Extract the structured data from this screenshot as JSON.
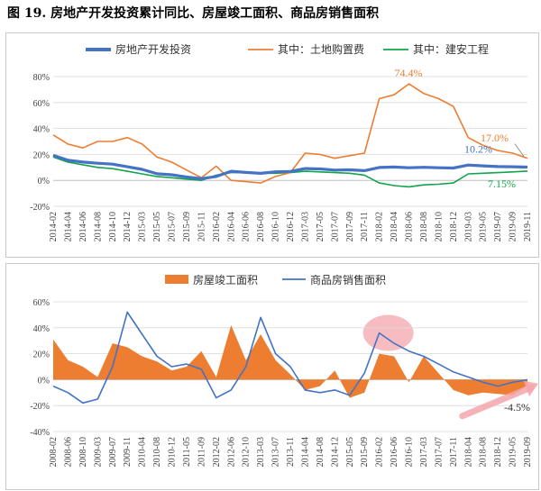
{
  "title": "图 19. 房地产开发投资累计同比、房屋竣工面积、商品房销售面积",
  "chart_data": [
    {
      "type": "line",
      "ylim": [
        -20,
        80
      ],
      "yticks": [
        "80%",
        "60%",
        "40%",
        "20%",
        "0%",
        "-20%"
      ],
      "ytick_values": [
        80,
        60,
        40,
        20,
        0,
        -20
      ],
      "x_labels": [
        "2014-02",
        "2014-04",
        "2014-06",
        "2014-08",
        "2014-10",
        "2014-12",
        "2015-03",
        "2015-05",
        "2015-07",
        "2015-09",
        "2015-11",
        "2016-02",
        "2016-04",
        "2016-06",
        "2016-08",
        "2016-10",
        "2016-12",
        "2017-03",
        "2017-05",
        "2017-07",
        "2017-09",
        "2017-11",
        "2018-02",
        "2018-04",
        "2018-06",
        "2018-08",
        "2018-10",
        "2018-12",
        "2019-03",
        "2019-05",
        "2019-07",
        "2019-09",
        "2019-11"
      ],
      "series": [
        {
          "name": "房地产开发投资",
          "color": "#4472C4",
          "values": [
            19.3,
            15.5,
            14.1,
            13.2,
            12.5,
            10.5,
            8.5,
            5.1,
            4.3,
            2.6,
            1.3,
            3.0,
            7.0,
            6.1,
            5.4,
            6.6,
            6.9,
            9.1,
            8.8,
            7.9,
            8.1,
            7.5,
            9.9,
            10.3,
            9.7,
            10.1,
            9.7,
            9.5,
            11.8,
            11.2,
            10.6,
            10.5,
            10.2
          ]
        },
        {
          "name": "其中：土地购置费",
          "color": "#ED7D31",
          "values": [
            35,
            28,
            25,
            30,
            30,
            33,
            28,
            18,
            14,
            8,
            2,
            11,
            0,
            -1,
            -2,
            3,
            6,
            21,
            20,
            17,
            19,
            21,
            63,
            66,
            74.4,
            67,
            63,
            57,
            33,
            27,
            23,
            21,
            17.0
          ]
        },
        {
          "name": "其中：建安工程",
          "color": "#13A34B",
          "values": [
            18,
            14,
            12,
            10,
            9,
            7,
            5,
            3,
            2,
            1,
            0,
            4,
            6,
            6,
            5.5,
            5.5,
            6,
            7,
            6.5,
            6,
            5.5,
            4,
            -2,
            -4,
            -5,
            -3.5,
            -3,
            -2,
            5,
            5.5,
            6,
            6.5,
            7.15
          ]
        }
      ],
      "annotations": [
        "74.4%",
        "17.0%",
        "10.2%",
        "7.15%"
      ]
    },
    {
      "type": "bar+line",
      "ylim": [
        -40,
        60
      ],
      "yticks": [
        "60%",
        "40%",
        "20%",
        "0%",
        "-20%",
        "-40%"
      ],
      "ytick_values": [
        60,
        40,
        20,
        0,
        -20,
        -40
      ],
      "x_labels": [
        "2008-02",
        "2008-06",
        "2008-10",
        "2009-03",
        "2009-07",
        "2009-11",
        "2010-04",
        "2010-08",
        "2010-12",
        "2011-05",
        "2011-09",
        "2012-02",
        "2012-06",
        "2012-10",
        "2013-03",
        "2013-07",
        "2013-11",
        "2014-04",
        "2014-08",
        "2014-12",
        "2015-05",
        "2015-09",
        "2016-02",
        "2016-06",
        "2016-10",
        "2017-03",
        "2017-07",
        "2017-11",
        "2018-04",
        "2018-08",
        "2018-12",
        "2019-05",
        "2019-09"
      ],
      "series": [
        {
          "name": "房屋竣工面积",
          "color": "#ED7D31",
          "values": [
            31,
            15,
            10,
            2,
            28,
            25,
            18,
            14,
            7,
            10,
            22,
            2,
            42,
            15,
            35,
            15,
            4,
            -8,
            -5,
            7,
            -14,
            -10,
            20,
            18,
            -2,
            18,
            5,
            -8,
            -12,
            -10,
            -11,
            -12,
            -4.5
          ]
        },
        {
          "name": "商品房销售面积",
          "color": "#4472C4",
          "values": [
            -5,
            -10,
            -18,
            -15,
            10,
            52,
            35,
            18,
            10,
            12,
            8,
            -14,
            -8,
            10,
            48,
            20,
            10,
            -8,
            -10,
            -8,
            -12,
            5,
            36,
            28,
            22,
            18,
            12,
            6,
            2,
            -2,
            -5,
            -2,
            -0.1
          ]
        }
      ],
      "annotations": [
        "-4.5%"
      ]
    }
  ]
}
